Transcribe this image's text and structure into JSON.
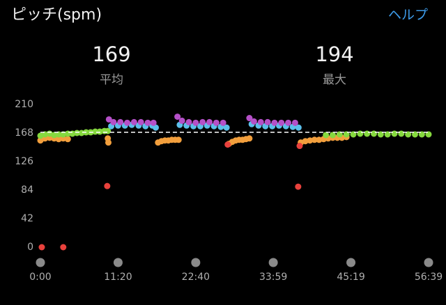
{
  "header": {
    "title": "ピッチ(spm)",
    "help": "ヘルプ"
  },
  "stats": [
    {
      "value": 169,
      "label": "平均"
    },
    {
      "value": 194,
      "label": "最大"
    }
  ],
  "chart_data": {
    "type": "scatter",
    "xlim": [
      0,
      3399
    ],
    "xticks": [
      {
        "value": 0,
        "label": "0:00"
      },
      {
        "value": 680,
        "label": "11:20"
      },
      {
        "value": 1360,
        "label": "22:40"
      },
      {
        "value": 2039,
        "label": "33:59"
      },
      {
        "value": 2719,
        "label": "45:19"
      },
      {
        "value": 3399,
        "label": "56:39"
      }
    ],
    "ylim": [
      0,
      210
    ],
    "yticks": [
      0,
      42,
      84,
      126,
      168,
      210
    ],
    "series": [
      {
        "color": "#f29f3d",
        "x": [
          0,
          40,
          80,
          120,
          160,
          200,
          240,
          590,
          595,
          1030,
          1060,
          1090,
          1120,
          1150,
          1180,
          1210,
          1650,
          1680,
          1710,
          1740,
          1770,
          1800,
          1830,
          2280,
          2320,
          2360,
          2400,
          2440,
          2480,
          2520,
          2560,
          2600,
          2640,
          2680
        ],
        "values": [
          157,
          160,
          161,
          160,
          159,
          160,
          159,
          160,
          154,
          154,
          156,
          157,
          157,
          158,
          158,
          158,
          152,
          155,
          157,
          158,
          158,
          159,
          160,
          154,
          156,
          157,
          158,
          158,
          159,
          160,
          161,
          161,
          161,
          162
        ]
      },
      {
        "color": "#86d93f",
        "x": [
          0,
          40,
          80,
          120,
          160,
          200,
          240,
          280,
          320,
          360,
          400,
          440,
          480,
          520,
          560,
          590,
          2500,
          2560,
          2620,
          2680,
          2740,
          2800,
          2860,
          2920,
          2980,
          3040,
          3100,
          3160,
          3220,
          3280,
          3340,
          3399
        ],
        "values": [
          164,
          166,
          167,
          165,
          166,
          166,
          167,
          167,
          168,
          168,
          169,
          169,
          170,
          170,
          171,
          171,
          165,
          165,
          166,
          166,
          166,
          167,
          167,
          167,
          166,
          166,
          167,
          167,
          166,
          166,
          166,
          166
        ]
      },
      {
        "color": "#5bbfea",
        "x": [
          620,
          680,
          740,
          800,
          860,
          920,
          980,
          1010,
          1220,
          1280,
          1340,
          1400,
          1460,
          1520,
          1580,
          1630,
          1850,
          1910,
          1970,
          2030,
          2090,
          2150,
          2210,
          2260
        ],
        "values": [
          178,
          179,
          179,
          180,
          179,
          178,
          179,
          176,
          180,
          179,
          178,
          178,
          179,
          178,
          177,
          176,
          181,
          179,
          178,
          178,
          179,
          178,
          177,
          176
        ]
      },
      {
        "color": "#b550c8",
        "x": [
          600,
          640,
          700,
          760,
          820,
          880,
          940,
          990,
          1200,
          1240,
          1300,
          1360,
          1420,
          1480,
          1540,
          1600,
          1830,
          1870,
          1930,
          1990,
          2050,
          2110,
          2170,
          2230
        ],
        "values": [
          188,
          184,
          184,
          183,
          184,
          184,
          183,
          183,
          192,
          186,
          184,
          183,
          184,
          184,
          183,
          183,
          190,
          185,
          184,
          184,
          183,
          183,
          183,
          183
        ]
      },
      {
        "color": "#e8413c",
        "x": [
          12,
          200,
          585,
          1640,
          2257,
          2270
        ],
        "values": [
          0,
          0,
          90,
          151,
          89,
          149
        ]
      }
    ]
  }
}
